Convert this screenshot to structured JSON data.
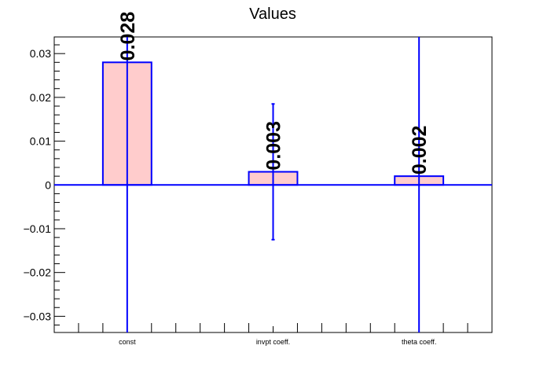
{
  "chart_data": {
    "type": "bar",
    "title": "Values",
    "categories": [
      "const",
      "invpt coeff.",
      "theta coeff."
    ],
    "values": [
      0.028,
      0.003,
      0.002
    ],
    "errors": [
      0.064,
      0.0155,
      0.0565
    ],
    "data_labels": [
      "0.028",
      "0.003",
      "0.002"
    ],
    "ylim": [
      -0.0337,
      0.0338
    ],
    "yticks": [
      -0.03,
      -0.02,
      -0.01,
      0,
      0.01,
      0.02,
      0.03
    ],
    "ytick_labels": [
      "−0.03",
      "−0.02",
      "−0.01",
      "0",
      "0.01",
      "0.02",
      "0.03"
    ],
    "grid": false,
    "colors": {
      "bar_fill": "#ffcccc",
      "bar_edge": "#0000ff",
      "error_bar": "#0000ff",
      "zero_line": "#0000ff",
      "axis": "#000000"
    }
  }
}
